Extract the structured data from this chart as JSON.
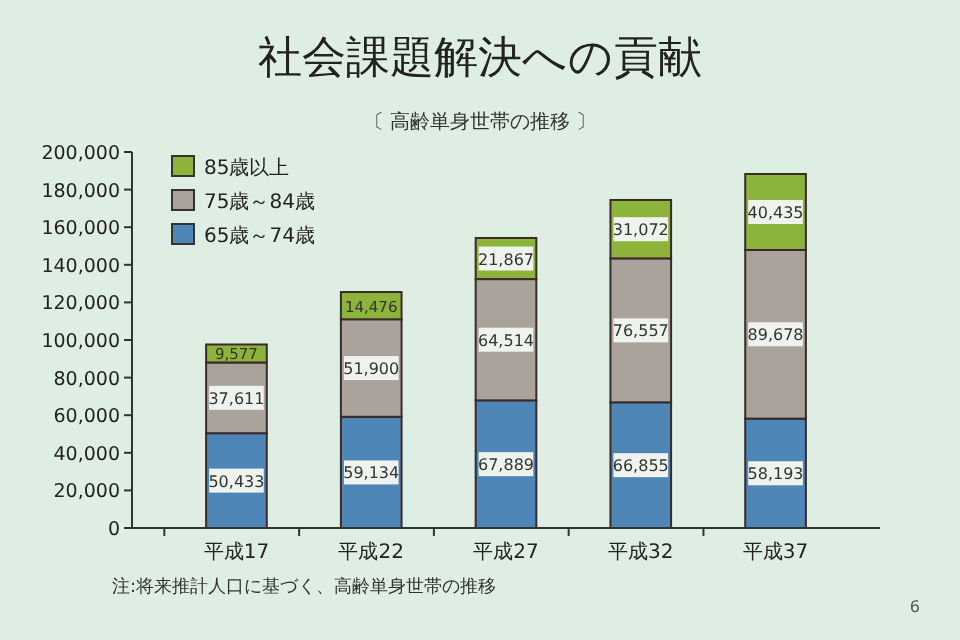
{
  "chart_data": {
    "type": "bar",
    "title": "社会課題解決への貢献",
    "subtitle": "〔 高齢単身世帯の推移 〕",
    "categories": [
      "平成17",
      "平成22",
      "平成27",
      "平成32",
      "平成37"
    ],
    "stacked": true,
    "legend": "top left",
    "grid": false,
    "series": [
      {
        "name": "65歳～74歳",
        "color": "#4f86b8",
        "values": [
          50433,
          59134,
          67889,
          66855,
          58193
        ],
        "value_labels": [
          "50,433",
          "59,134",
          "67,889",
          "66,855",
          "58,193"
        ]
      },
      {
        "name": "75歳～84歳",
        "color": "#a9a39c",
        "values": [
          37611,
          51900,
          64514,
          76557,
          89678
        ],
        "value_labels": [
          "37,611",
          "51,900",
          "64,514",
          "76,557",
          "89,678"
        ]
      },
      {
        "name": "85歳以上",
        "color": "#8db43a",
        "values": [
          9577,
          14476,
          21867,
          31072,
          40435
        ],
        "value_labels": [
          "9,577",
          "14,476",
          "21,867",
          "31,072",
          "40,435"
        ]
      }
    ],
    "ylim": [
      0,
      200000
    ],
    "yticks": [
      {
        "value": 0,
        "label": "0"
      },
      {
        "value": 20000,
        "label": "20,000"
      },
      {
        "value": 40000,
        "label": "40,000"
      },
      {
        "value": 60000,
        "label": "60,000"
      },
      {
        "value": 80000,
        "label": "80,000"
      },
      {
        "value": 100000,
        "label": "100,000"
      },
      {
        "value": 120000,
        "label": "120,000"
      },
      {
        "value": 140000,
        "label": "140,000"
      },
      {
        "value": 160000,
        "label": "160,000"
      },
      {
        "value": 180000,
        "label": "180,000"
      },
      {
        "value": 200000,
        "label": "200,000"
      }
    ],
    "annotations": [
      "注:将来推計人口に基づく、高齢単身世帯の推移",
      "6"
    ]
  }
}
